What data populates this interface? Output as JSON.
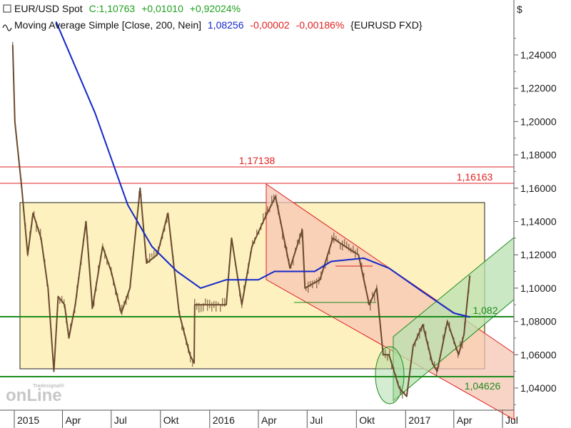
{
  "header": {
    "line1": {
      "instrument": "EUR/USD Spot",
      "close": "C:1,10763",
      "change": "+0,01010",
      "change_pct": "+0,92024%"
    },
    "line2": {
      "indicator": "Moving Average Simple [Close, 200, Nein]",
      "value": "1,08256",
      "change": "-0,00002",
      "change_pct": "-0,00186%",
      "symbol": "{EURUSD FXD}"
    }
  },
  "currency_label": "$",
  "watermark": {
    "sub": "Tradesignal®",
    "main": "onLine"
  },
  "colors": {
    "candle": "#6b4a2e",
    "sma": "#1428c8",
    "resistance": "#e02020",
    "support": "#1e8c1e",
    "range_fill": "#fdf1c0",
    "down_channel_fill": "#f6c6b4",
    "up_channel_fill": "#b9e0b0",
    "up_text": "#1ea01e",
    "down_text": "#e02020"
  },
  "chart_data": {
    "type": "line",
    "x_labels": [
      "2015",
      "Apr",
      "Jul",
      "Okt",
      "2016",
      "Apr",
      "Jul",
      "Okt",
      "2017",
      "Apr",
      "Jul"
    ],
    "y_ticks": [
      "1,04000",
      "1,06000",
      "1,08000",
      "1,10000",
      "1,12000",
      "1,14000",
      "1,16000",
      "1,18000",
      "1,20000",
      "1,22000",
      "1,24000"
    ],
    "ylim": [
      1.027,
      1.268
    ],
    "grid": false,
    "levels": [
      {
        "label": "1,17138",
        "value": 1.17138,
        "color": "red"
      },
      {
        "label": "1,16163",
        "value": 1.16163,
        "color": "red"
      },
      {
        "label": "1,082",
        "value": 1.082,
        "color": "green"
      },
      {
        "label": "1,04626",
        "value": 1.04626,
        "color": "green"
      }
    ],
    "range_box": {
      "from": "2015-01-01",
      "to": "2017-05-01",
      "low": 1.052,
      "high": 1.15
    },
    "price_series": [
      {
        "x": "2014-12-29",
        "y": 1.246
      },
      {
        "x": "2015-01-02",
        "y": 1.2
      },
      {
        "x": "2015-01-15",
        "y": 1.16
      },
      {
        "x": "2015-01-26",
        "y": 1.12
      },
      {
        "x": "2015-02-05",
        "y": 1.145
      },
      {
        "x": "2015-02-20",
        "y": 1.13
      },
      {
        "x": "2015-03-05",
        "y": 1.1
      },
      {
        "x": "2015-03-16",
        "y": 1.05
      },
      {
        "x": "2015-03-24",
        "y": 1.095
      },
      {
        "x": "2015-04-05",
        "y": 1.09
      },
      {
        "x": "2015-04-13",
        "y": 1.07
      },
      {
        "x": "2015-04-25",
        "y": 1.09
      },
      {
        "x": "2015-05-15",
        "y": 1.14
      },
      {
        "x": "2015-05-27",
        "y": 1.088
      },
      {
        "x": "2015-06-15",
        "y": 1.125
      },
      {
        "x": "2015-07-01",
        "y": 1.11
      },
      {
        "x": "2015-07-20",
        "y": 1.085
      },
      {
        "x": "2015-08-05",
        "y": 1.1
      },
      {
        "x": "2015-08-24",
        "y": 1.16
      },
      {
        "x": "2015-09-05",
        "y": 1.115
      },
      {
        "x": "2015-09-25",
        "y": 1.12
      },
      {
        "x": "2015-10-15",
        "y": 1.145
      },
      {
        "x": "2015-11-05",
        "y": 1.085
      },
      {
        "x": "2015-11-25",
        "y": 1.06
      },
      {
        "x": "2015-12-03",
        "y": 1.055
      },
      {
        "x": "2015-12-04",
        "y": 1.09
      },
      {
        "x": "2015-12-20",
        "y": 1.09
      },
      {
        "x": "2016-01-10",
        "y": 1.09
      },
      {
        "x": "2016-02-01",
        "y": 1.09
      },
      {
        "x": "2016-02-11",
        "y": 1.13
      },
      {
        "x": "2016-03-01",
        "y": 1.09
      },
      {
        "x": "2016-03-20",
        "y": 1.125
      },
      {
        "x": "2016-04-10",
        "y": 1.14
      },
      {
        "x": "2016-05-03",
        "y": 1.155
      },
      {
        "x": "2016-05-30",
        "y": 1.112
      },
      {
        "x": "2016-06-22",
        "y": 1.135
      },
      {
        "x": "2016-06-27",
        "y": 1.1
      },
      {
        "x": "2016-07-25",
        "y": 1.105
      },
      {
        "x": "2016-08-18",
        "y": 1.13
      },
      {
        "x": "2016-09-10",
        "y": 1.125
      },
      {
        "x": "2016-10-05",
        "y": 1.12
      },
      {
        "x": "2016-10-25",
        "y": 1.09
      },
      {
        "x": "2016-11-08",
        "y": 1.1
      },
      {
        "x": "2016-11-20",
        "y": 1.06
      },
      {
        "x": "2016-12-01",
        "y": 1.06
      },
      {
        "x": "2016-12-20",
        "y": 1.04
      },
      {
        "x": "2017-01-03",
        "y": 1.035
      },
      {
        "x": "2017-01-15",
        "y": 1.065
      },
      {
        "x": "2017-02-02",
        "y": 1.078
      },
      {
        "x": "2017-02-20",
        "y": 1.055
      },
      {
        "x": "2017-03-01",
        "y": 1.05
      },
      {
        "x": "2017-03-20",
        "y": 1.08
      },
      {
        "x": "2017-04-10",
        "y": 1.06
      },
      {
        "x": "2017-04-20",
        "y": 1.072
      },
      {
        "x": "2017-05-01",
        "y": 1.1076
      }
    ],
    "sma_series": [
      {
        "x": "2015-03-20",
        "y": 1.26
      },
      {
        "x": "2015-06-01",
        "y": 1.205
      },
      {
        "x": "2015-08-01",
        "y": 1.15
      },
      {
        "x": "2015-09-15",
        "y": 1.125
      },
      {
        "x": "2015-11-01",
        "y": 1.11
      },
      {
        "x": "2015-12-15",
        "y": 1.1
      },
      {
        "x": "2016-02-01",
        "y": 1.105
      },
      {
        "x": "2016-03-01",
        "y": 1.105
      },
      {
        "x": "2016-04-01",
        "y": 1.105
      },
      {
        "x": "2016-05-01",
        "y": 1.11
      },
      {
        "x": "2016-06-15",
        "y": 1.11
      },
      {
        "x": "2016-07-15",
        "y": 1.11
      },
      {
        "x": "2016-08-15",
        "y": 1.116
      },
      {
        "x": "2016-10-15",
        "y": 1.118
      },
      {
        "x": "2016-12-01",
        "y": 1.112
      },
      {
        "x": "2017-02-01",
        "y": 1.098
      },
      {
        "x": "2017-04-01",
        "y": 1.085
      },
      {
        "x": "2017-05-01",
        "y": 1.0826
      }
    ]
  }
}
